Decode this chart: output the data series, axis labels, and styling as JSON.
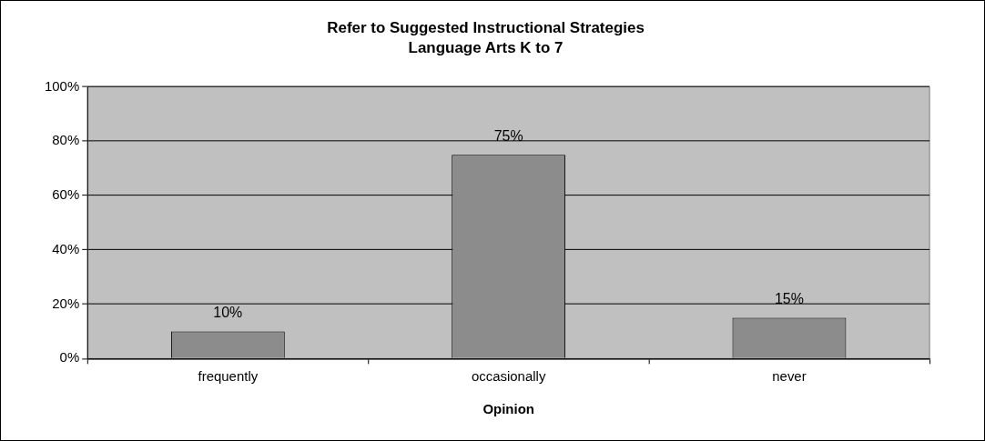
{
  "chart_data": {
    "type": "bar",
    "title": "Refer to Suggested Instructional Strategies",
    "subtitle": "Language Arts K to 7",
    "xlabel": "Opinion",
    "categories": [
      "frequently",
      "occasionally",
      "never"
    ],
    "values": [
      10,
      75,
      15
    ],
    "color": "#8c8c8c",
    "value_labels": [
      "10%",
      "75%",
      "15%"
    ],
    "ylim": [
      0,
      100
    ],
    "yticks": [
      {
        "value": 0,
        "label": "0%"
      },
      {
        "value": 20,
        "label": "20%"
      },
      {
        "value": 40,
        "label": "40%"
      },
      {
        "value": 60,
        "label": "60%"
      },
      {
        "value": 80,
        "label": "80%"
      },
      {
        "value": 100,
        "label": "100%"
      }
    ],
    "grid": "y",
    "legend": false
  }
}
